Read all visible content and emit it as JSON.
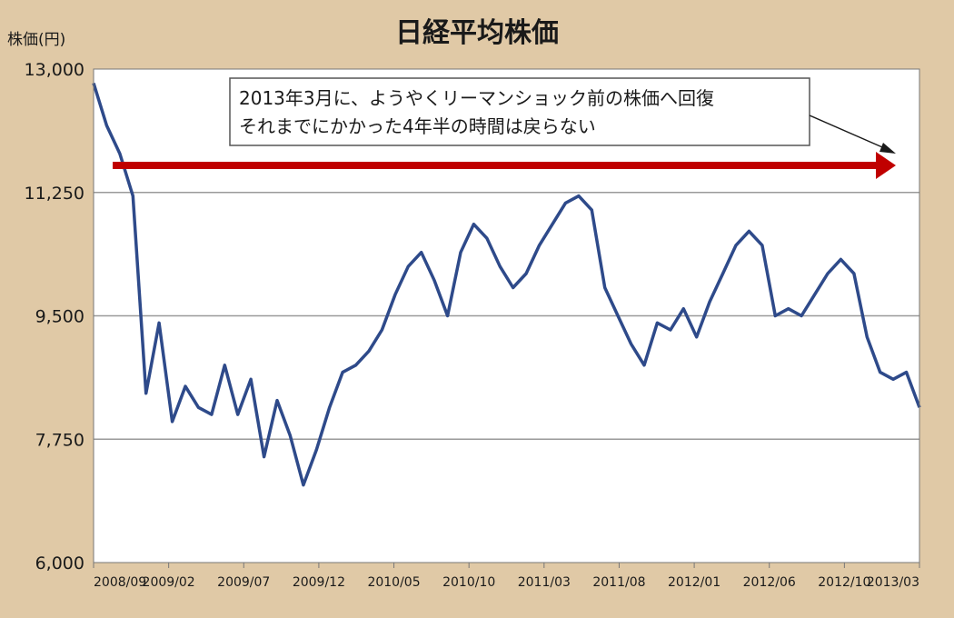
{
  "chart_data": {
    "type": "line",
    "title": "日経平均株価",
    "ylabel": "株価(円)",
    "xlabel": "",
    "ylim": [
      6000,
      13000
    ],
    "y_ticks": [
      "6,000",
      "7,750",
      "9,500",
      "11,250",
      "13,000"
    ],
    "y_tick_values": [
      6000,
      7750,
      9500,
      11250,
      13000
    ],
    "x_tick_labels": [
      "2008/09",
      "2009/02",
      "2009/07",
      "2009/12",
      "2010/05",
      "2010/10",
      "2011/03",
      "2011/08",
      "2012/01",
      "2012/06",
      "2012/10",
      "2013/03"
    ],
    "grid": true,
    "x": [
      "2008/09",
      "2008/10",
      "2008/10",
      "2008/11",
      "2008/11",
      "2008/12",
      "2009/01",
      "2009/02",
      "2009/02",
      "2009/03",
      "2009/03",
      "2009/04",
      "2009/05",
      "2009/06",
      "2009/07",
      "2009/07",
      "2009/08",
      "2009/09",
      "2009/10",
      "2009/11",
      "2009/11",
      "2009/12",
      "2010/01",
      "2010/02",
      "2010/03",
      "2010/04",
      "2010/05",
      "2010/05",
      "2010/06",
      "2010/07",
      "2010/08",
      "2010/09",
      "2010/10",
      "2010/11",
      "2010/12",
      "2011/01",
      "2011/02",
      "2011/03",
      "2011/03",
      "2011/04",
      "2011/05",
      "2011/06",
      "2011/07",
      "2011/08",
      "2011/08",
      "2011/09",
      "2011/10",
      "2011/11",
      "2011/12",
      "2012/01",
      "2012/02",
      "2012/03",
      "2012/04",
      "2012/05",
      "2012/06",
      "2012/07",
      "2012/08",
      "2012/09",
      "2012/10",
      "2012/11",
      "2012/12",
      "2013/01",
      "2013/02",
      "2013/03"
    ],
    "series": [
      {
        "values": [
          12800,
          12200,
          11800,
          11200,
          8400,
          9400,
          8000,
          8500,
          8200,
          8100,
          8800,
          8100,
          8600,
          7500,
          8300,
          7800,
          7100,
          7600,
          8200,
          8700,
          8800,
          9000,
          9300,
          9800,
          10200,
          10400,
          10000,
          9500,
          10400,
          10800,
          10600,
          10200,
          9900,
          10100,
          10500,
          10800,
          11100,
          11200,
          11000,
          9900,
          9500,
          9100,
          8800,
          9400,
          9300,
          9600,
          9200,
          9700,
          10100,
          10500,
          10700,
          10500,
          9500,
          9600,
          9500,
          9800,
          10100,
          10300,
          10100,
          9200,
          8700,
          8600,
          8700,
          8200
        ],
        "color": "#2e4a8a"
      }
    ],
    "annotation_lines": [
      "2013年3月に、ようやくリーマンショック前の株価へ回復",
      "それまでにかかった4年半の時間は戻らない"
    ],
    "arrow_color": "#c00000"
  }
}
